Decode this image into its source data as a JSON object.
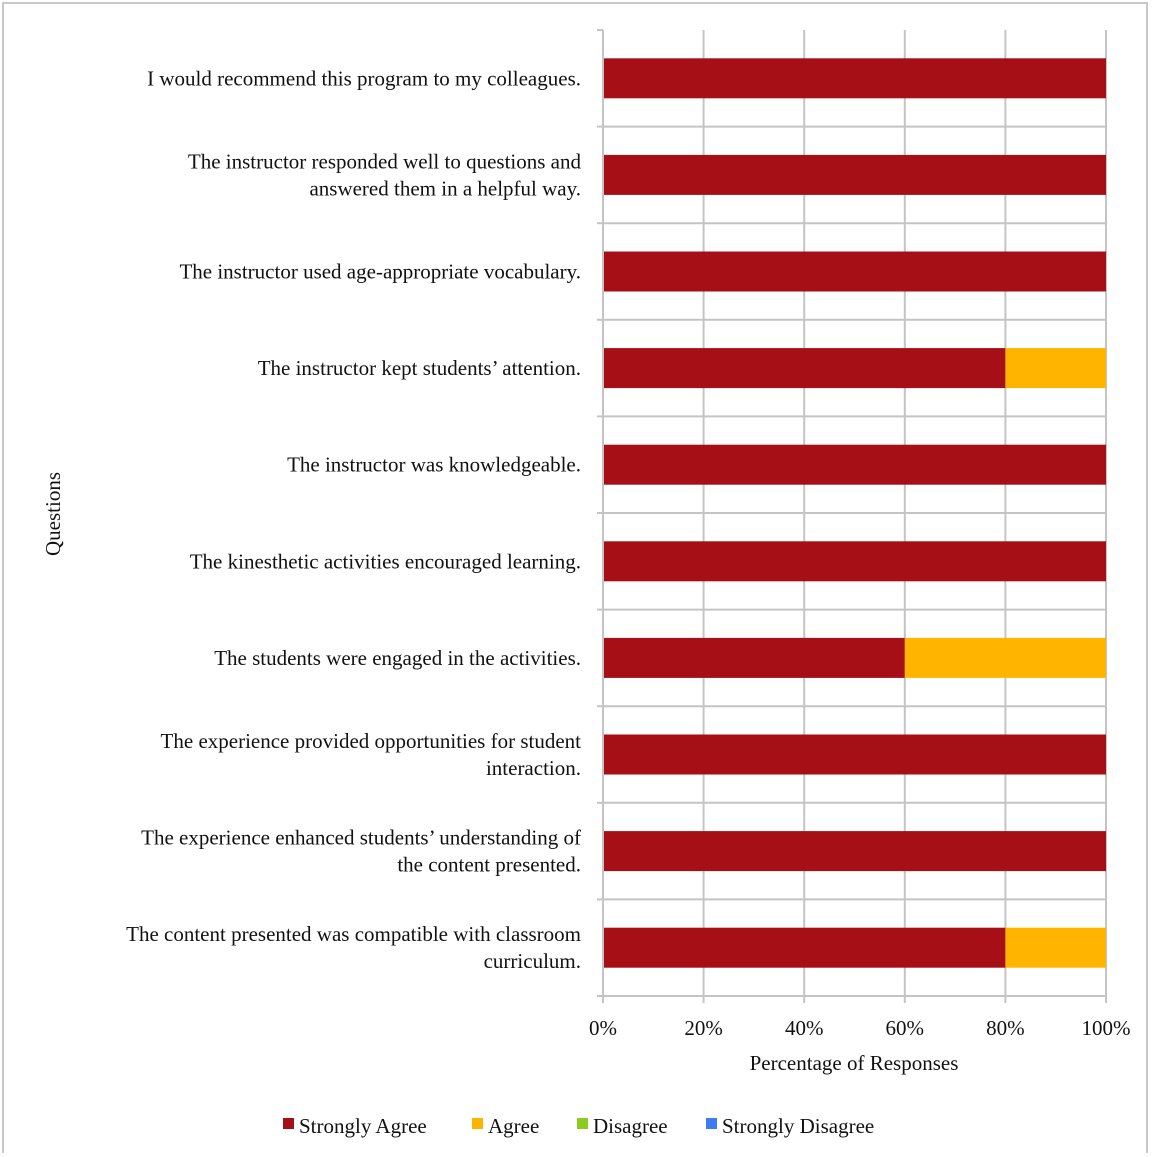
{
  "chart_data": {
    "type": "bar",
    "orientation": "horizontal",
    "stacked": true,
    "categories": [
      [
        "I would recommend this program to my colleagues."
      ],
      [
        "The instructor responded well to questions and",
        "answered them in a helpful way."
      ],
      [
        "The instructor used age-appropriate vocabulary."
      ],
      [
        "The instructor kept students’ attention."
      ],
      [
        "The instructor was knowledgeable."
      ],
      [
        "The kinesthetic activities encouraged learning."
      ],
      [
        "The students were engaged in the activities."
      ],
      [
        "The experience provided opportunities for student",
        "interaction."
      ],
      [
        "The experience enhanced students’ understanding of",
        "the content presented."
      ],
      [
        "The content presented was compatible with classroom",
        "curriculum."
      ]
    ],
    "series": [
      {
        "name": "Strongly Agree",
        "color": "#a50f15",
        "values": [
          100,
          100,
          100,
          80,
          100,
          100,
          60,
          100,
          100,
          80
        ]
      },
      {
        "name": "Agree",
        "color": "#ffb400",
        "values": [
          0,
          0,
          0,
          20,
          0,
          0,
          40,
          0,
          0,
          20
        ]
      },
      {
        "name": "Disagree",
        "color": "#8ccc1e",
        "values": [
          0,
          0,
          0,
          0,
          0,
          0,
          0,
          0,
          0,
          0
        ]
      },
      {
        "name": "Strongly Disagree",
        "color": "#3d7cf0",
        "values": [
          0,
          0,
          0,
          0,
          0,
          0,
          0,
          0,
          0,
          0
        ]
      }
    ],
    "xlabel": "Percentage of Responses",
    "ylabel": "Questions",
    "xlim": [
      0,
      100
    ],
    "xticks": [
      "0%",
      "20%",
      "40%",
      "60%",
      "80%",
      "100%"
    ],
    "grid": true,
    "legend_position": "bottom"
  }
}
